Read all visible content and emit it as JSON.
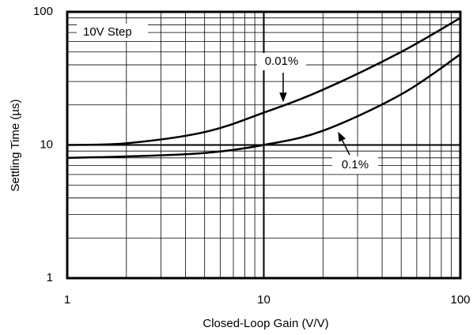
{
  "chart_data": {
    "type": "line",
    "x_label": "Closed-Loop Gain (V/V)",
    "y_label": "Settling Time (µs)",
    "x": [
      1,
      2,
      5,
      10,
      20,
      50,
      100
    ],
    "series": [
      {
        "name": "0.01%",
        "color": "#000000",
        "values": [
          10,
          10.3,
          12.5,
          17.5,
          26,
          50,
          90
        ]
      },
      {
        "name": "0.1%",
        "color": "#000000",
        "values": [
          8,
          8.2,
          8.7,
          10,
          12.8,
          24,
          48
        ]
      }
    ],
    "annotations": [
      "10V Step"
    ],
    "xlim": [
      1,
      100
    ],
    "ylim": [
      1,
      100
    ],
    "xticks": [
      1,
      10,
      100
    ],
    "yticks": [
      1,
      10,
      100
    ],
    "log_x": true,
    "log_y": true,
    "grid": true,
    "minor_grid": true
  }
}
